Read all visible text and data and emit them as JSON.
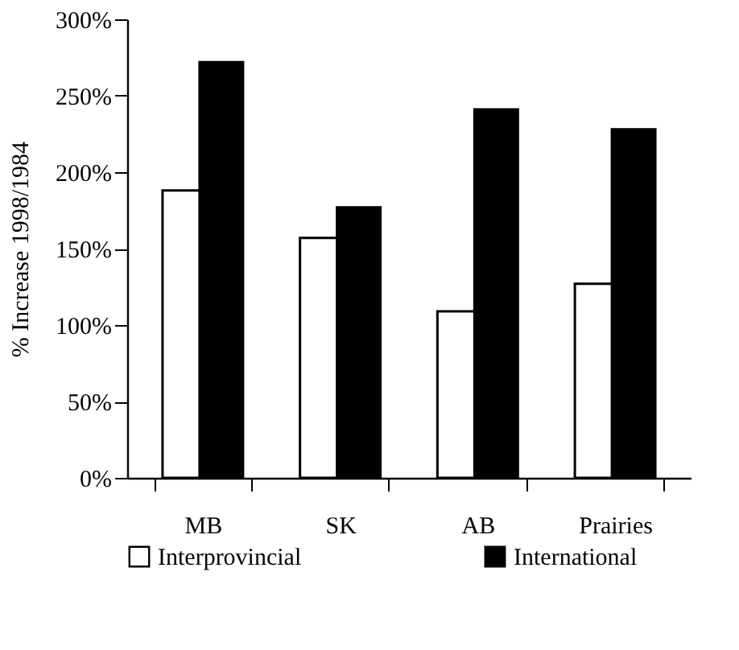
{
  "chart_data": {
    "type": "bar",
    "ylabel": "% Increase 1998/1984",
    "categories": [
      "MB",
      "SK",
      "AB",
      "Prairies"
    ],
    "series": [
      {
        "name": "Interprovincial",
        "color": "#ffffff",
        "values": [
          188,
          157,
          109,
          127
        ]
      },
      {
        "name": "International",
        "color": "#000000",
        "values": [
          272,
          177,
          241,
          228
        ]
      }
    ],
    "ylim": [
      0,
      300
    ],
    "yticks": [
      {
        "value": 0,
        "label": "0%"
      },
      {
        "value": 50,
        "label": "50%"
      },
      {
        "value": 100,
        "label": "100%"
      },
      {
        "value": 150,
        "label": "150%"
      },
      {
        "value": 200,
        "label": "200%"
      },
      {
        "value": 250,
        "label": "250%"
      },
      {
        "value": 300,
        "label": "300%"
      }
    ],
    "grid": false,
    "legend": "bottom"
  }
}
